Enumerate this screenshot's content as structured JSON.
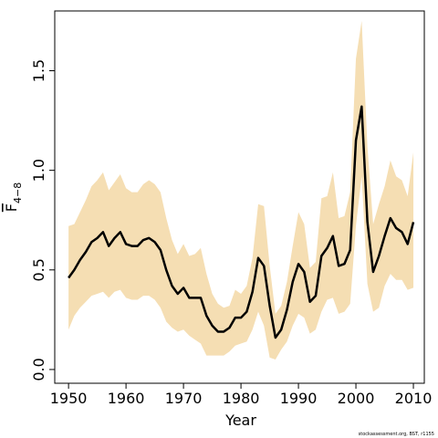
{
  "chart_data": {
    "type": "line",
    "xlabel": "Year",
    "ylabel": "F",
    "ylabel_sub": "4−8",
    "footnote": "stockassessment.org, BST, r1155",
    "color": "#000000",
    "band_color": "#f5deb3",
    "xlim": [
      1947.6,
      2011.9
    ],
    "ylim": [
      -0.069,
      1.8
    ],
    "xticks": [
      1950,
      1960,
      1970,
      1980,
      1990,
      2000,
      2010
    ],
    "yticks": [
      {
        "value": 0,
        "label": "0.0"
      },
      0.5,
      {
        "value": 1,
        "label": "1.0"
      },
      1.5
    ],
    "x": [
      1950,
      1951,
      1952,
      1953,
      1954,
      1955,
      1956,
      1957,
      1958,
      1959,
      1960,
      1961,
      1962,
      1963,
      1964,
      1965,
      1966,
      1967,
      1968,
      1969,
      1970,
      1971,
      1972,
      1973,
      1974,
      1975,
      1976,
      1977,
      1978,
      1979,
      1980,
      1981,
      1982,
      1983,
      1984,
      1985,
      1986,
      1987,
      1988,
      1989,
      1990,
      1991,
      1992,
      1993,
      1994,
      1995,
      1996,
      1997,
      1998,
      1999,
      2000,
      2001,
      2002,
      2003,
      2004,
      2005,
      2006,
      2007,
      2008,
      2009,
      2010
    ],
    "values": [
      0.46,
      0.5,
      0.55,
      0.59,
      0.64,
      0.66,
      0.69,
      0.62,
      0.66,
      0.69,
      0.63,
      0.62,
      0.62,
      0.65,
      0.66,
      0.64,
      0.6,
      0.5,
      0.42,
      0.38,
      0.41,
      0.36,
      0.36,
      0.36,
      0.27,
      0.22,
      0.19,
      0.19,
      0.21,
      0.26,
      0.26,
      0.29,
      0.39,
      0.56,
      0.52,
      0.32,
      0.16,
      0.2,
      0.3,
      0.44,
      0.53,
      0.49,
      0.34,
      0.37,
      0.57,
      0.61,
      0.67,
      0.52,
      0.53,
      0.6,
      1.15,
      1.32,
      0.74,
      0.49,
      0.57,
      0.67,
      0.76,
      0.71,
      0.69,
      0.63,
      0.74
    ],
    "upper": [
      0.72,
      0.73,
      0.79,
      0.85,
      0.92,
      0.95,
      0.99,
      0.9,
      0.94,
      0.98,
      0.91,
      0.89,
      0.89,
      0.93,
      0.95,
      0.93,
      0.89,
      0.76,
      0.65,
      0.58,
      0.63,
      0.57,
      0.58,
      0.61,
      0.48,
      0.38,
      0.33,
      0.31,
      0.32,
      0.4,
      0.38,
      0.42,
      0.56,
      0.83,
      0.82,
      0.52,
      0.28,
      0.32,
      0.44,
      0.62,
      0.79,
      0.73,
      0.51,
      0.54,
      0.86,
      0.87,
      0.99,
      0.76,
      0.77,
      0.89,
      1.56,
      1.75,
      1.12,
      0.73,
      0.83,
      0.92,
      1.05,
      0.97,
      0.95,
      0.87,
      1.09
    ],
    "lower": [
      0.2,
      0.27,
      0.31,
      0.34,
      0.37,
      0.38,
      0.39,
      0.36,
      0.39,
      0.4,
      0.36,
      0.35,
      0.35,
      0.37,
      0.37,
      0.35,
      0.31,
      0.24,
      0.21,
      0.19,
      0.2,
      0.17,
      0.15,
      0.13,
      0.07,
      0.07,
      0.07,
      0.07,
      0.09,
      0.12,
      0.13,
      0.14,
      0.2,
      0.29,
      0.22,
      0.06,
      0.05,
      0.1,
      0.14,
      0.22,
      0.28,
      0.26,
      0.18,
      0.2,
      0.29,
      0.35,
      0.36,
      0.28,
      0.29,
      0.33,
      0.72,
      0.97,
      0.43,
      0.29,
      0.31,
      0.42,
      0.48,
      0.45,
      0.45,
      0.4,
      0.41
    ]
  }
}
